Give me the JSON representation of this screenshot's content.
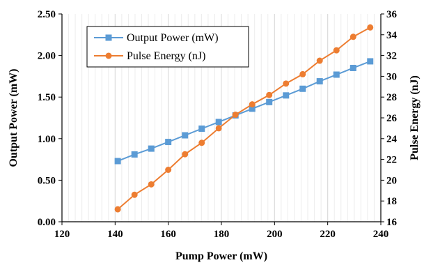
{
  "chart_data": {
    "type": "line",
    "title": "",
    "xlabel": "Pump Power (mW)",
    "ylabel_left": "Output Power (mW)",
    "ylabel_right": "Pulse Energy (nJ)",
    "xlim": [
      120,
      240
    ],
    "ylim_left": [
      0,
      2.5
    ],
    "ylim_right": [
      16,
      36
    ],
    "x_ticks": [
      "120",
      "140",
      "160",
      "180",
      "200",
      "220",
      "240"
    ],
    "y_left_ticks": [
      "0.00",
      "0.50",
      "1.00",
      "1.50",
      "2.00",
      "2.50"
    ],
    "y_right_ticks": [
      "16",
      "18",
      "20",
      "22",
      "24",
      "26",
      "28",
      "30",
      "32",
      "34",
      "36"
    ],
    "grid": "vertical",
    "legend_position": "top-left",
    "x": [
      141,
      147.3,
      153.6,
      160,
      166.3,
      172.6,
      179,
      185.3,
      191.6,
      198,
      204.3,
      210.6,
      217,
      223.3,
      229.6,
      236
    ],
    "series": [
      {
        "name": "Output Power (mW)",
        "axis": "left",
        "color": "#5B9BD5",
        "marker": "square",
        "values": [
          0.73,
          0.81,
          0.88,
          0.96,
          1.04,
          1.12,
          1.2,
          1.28,
          1.36,
          1.44,
          1.52,
          1.6,
          1.69,
          1.77,
          1.85,
          1.93
        ]
      },
      {
        "name": "Pulse Energy (nJ)",
        "axis": "right",
        "color": "#ED7D31",
        "marker": "circle",
        "values": [
          17.2,
          18.6,
          19.6,
          21.0,
          22.5,
          23.6,
          25.0,
          26.3,
          27.3,
          28.2,
          29.3,
          30.2,
          31.5,
          32.5,
          33.8,
          34.7
        ]
      }
    ]
  }
}
